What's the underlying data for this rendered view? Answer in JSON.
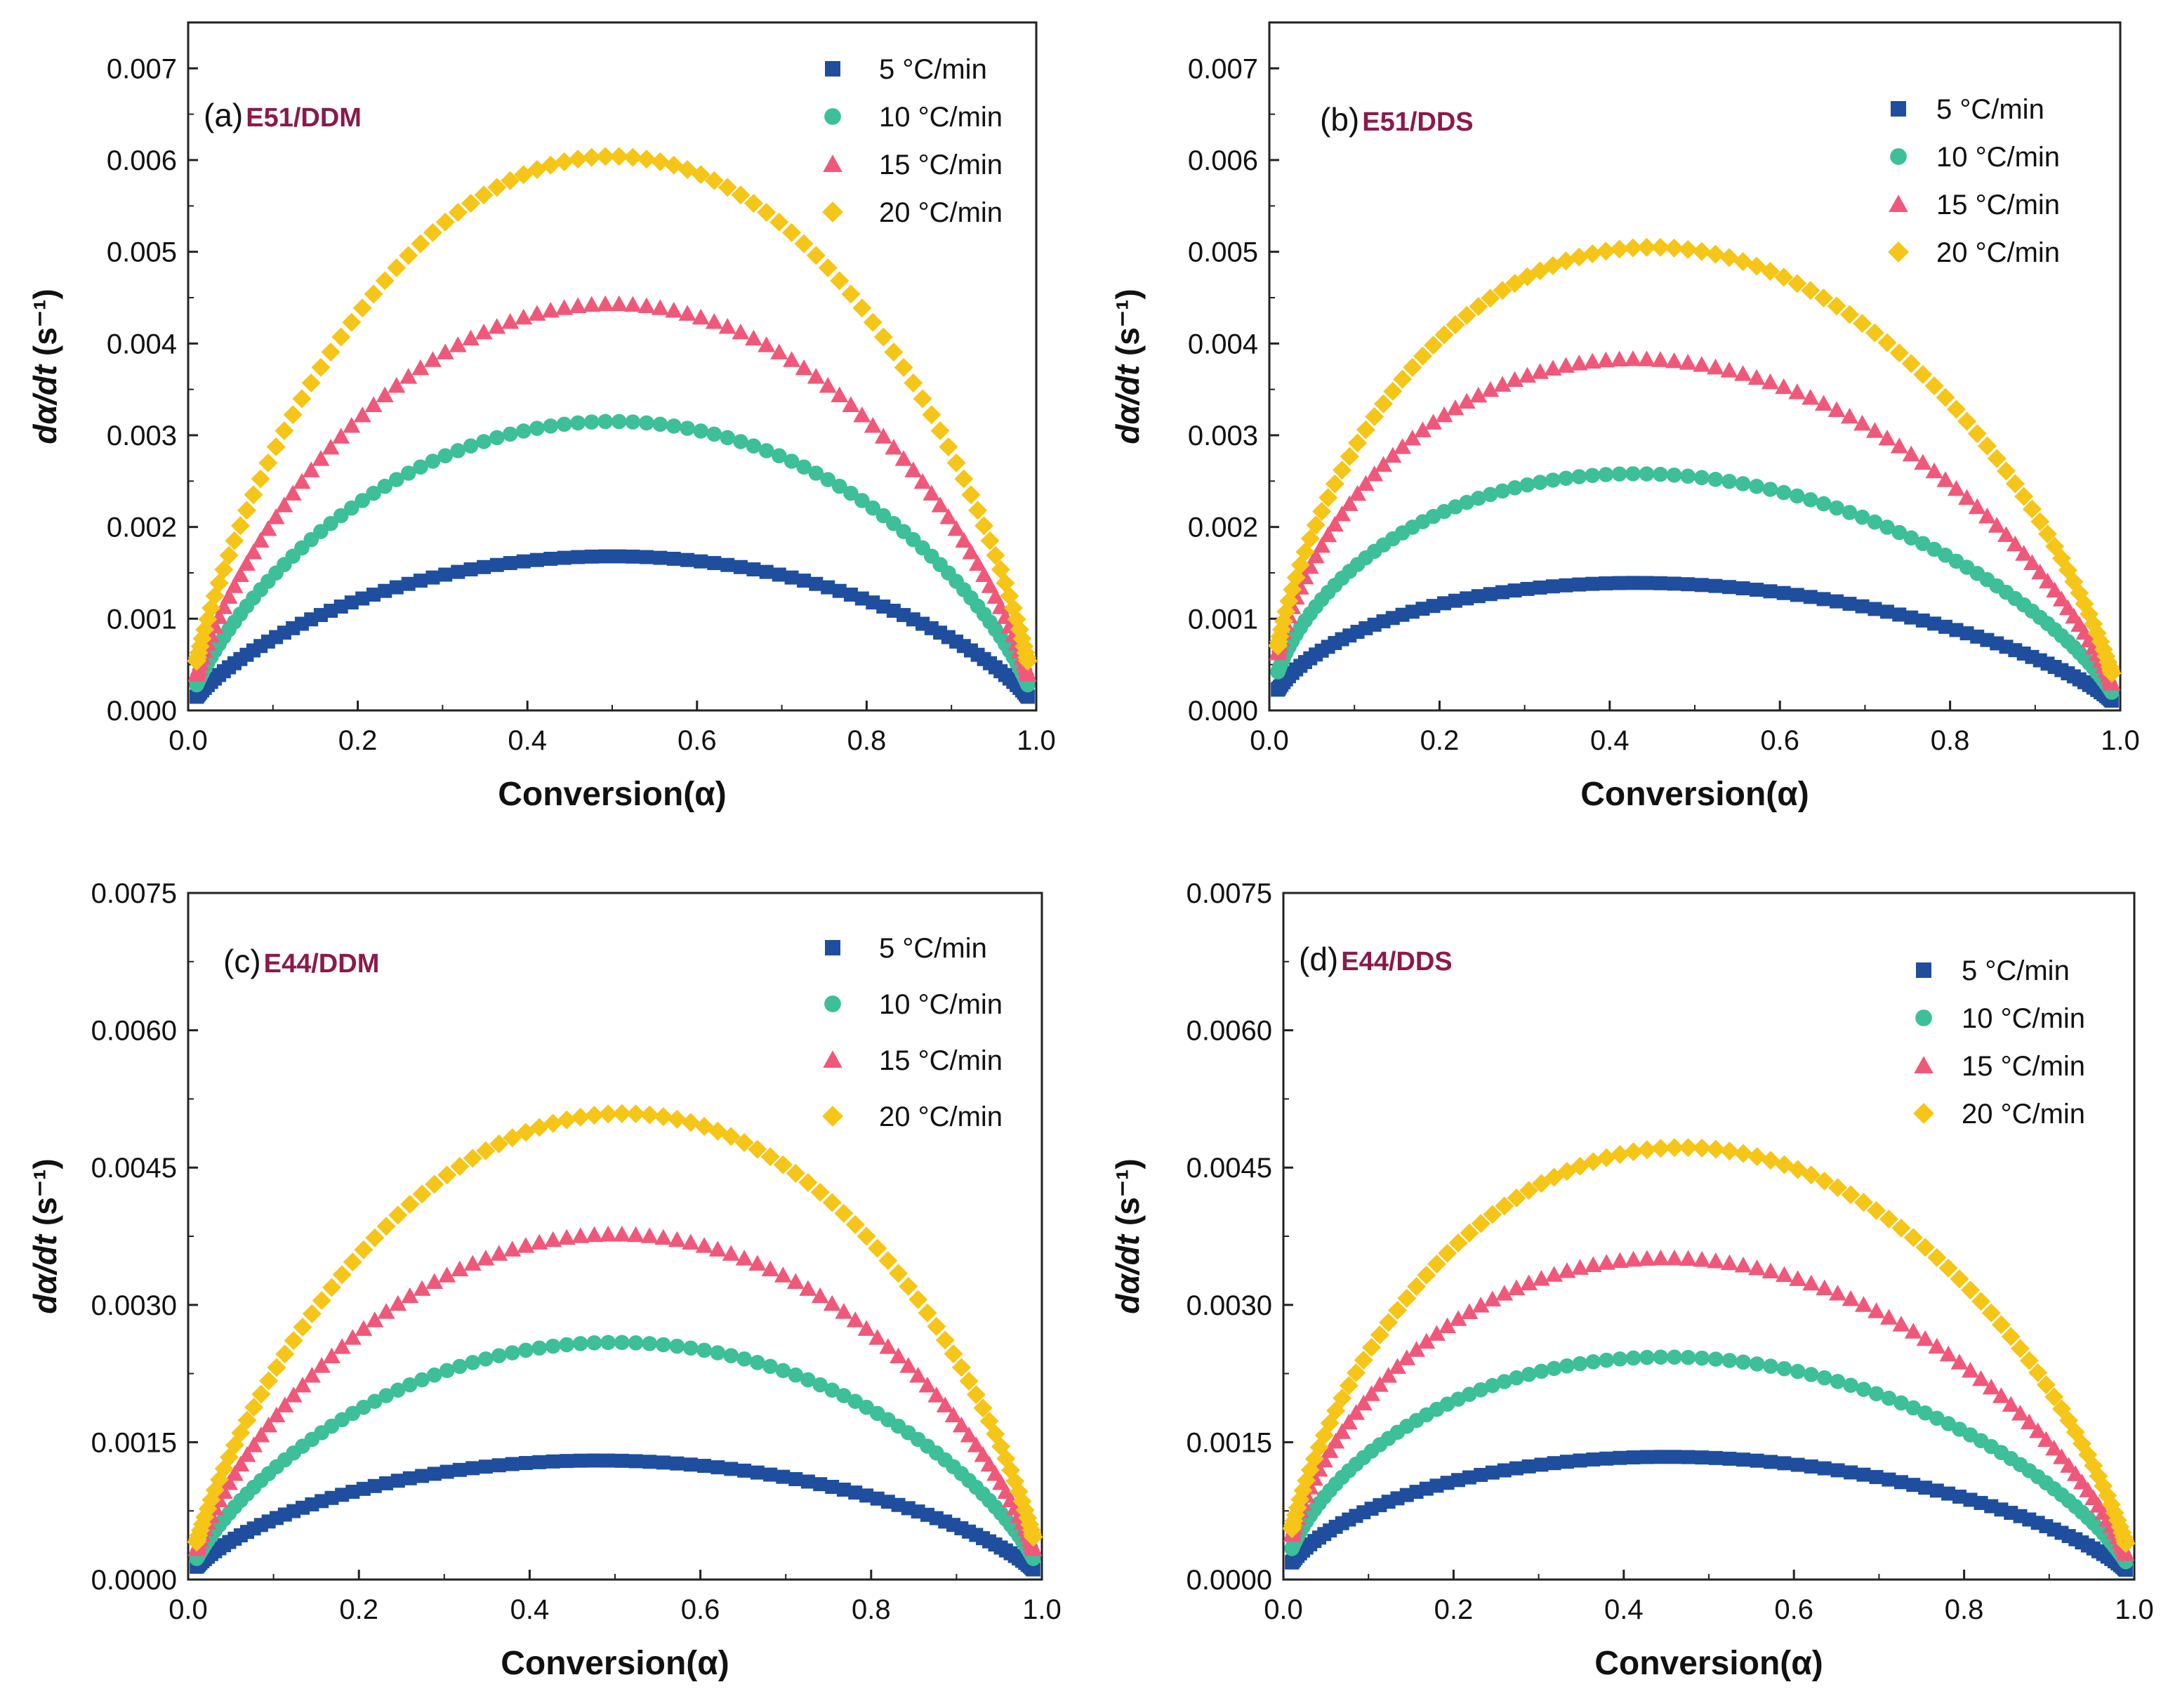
{
  "chart_data": [
    {
      "type": "scatter",
      "panel_letter": "(a)",
      "panel_name": "E51/DDM",
      "xlabel": "Conversion(α)",
      "ylabel": "dα/dt",
      "ylabel_unit": "(s⁻¹)",
      "xlim": [
        0,
        1
      ],
      "ylim": [
        0,
        0.0075
      ],
      "xticks": [
        "0.0",
        "0.2",
        "0.4",
        "0.6",
        "0.8",
        "1.0"
      ],
      "yticks": [
        {
          "value": 0,
          "label": "0.000"
        },
        {
          "value": 0.001,
          "label": "0.001"
        },
        {
          "value": 0.002,
          "label": "0.002"
        },
        {
          "value": 0.003,
          "label": "0.003"
        },
        {
          "value": 0.004,
          "label": "0.004"
        },
        {
          "value": 0.005,
          "label": "0.005"
        },
        {
          "value": 0.006,
          "label": "0.006"
        },
        {
          "value": 0.007,
          "label": "0.007"
        }
      ],
      "legend_position": "top-right",
      "series": [
        {
          "name": "5 °C/min",
          "marker": "square",
          "color": "#1f4e9e",
          "peak_x": 0.5,
          "peak_y": 0.00168,
          "skew": 0.5
        },
        {
          "name": "10 °C/min",
          "marker": "circle",
          "color": "#3dbf99",
          "peak_x": 0.52,
          "peak_y": 0.00315,
          "skew": 0.5
        },
        {
          "name": "15 °C/min",
          "marker": "triangle",
          "color": "#f0587a",
          "peak_x": 0.5,
          "peak_y": 0.00443,
          "skew": 0.5
        },
        {
          "name": "20 °C/min",
          "marker": "diamond",
          "color": "#f5c518",
          "peak_x": 0.51,
          "peak_y": 0.00604,
          "skew": 0.5
        }
      ]
    },
    {
      "type": "scatter",
      "panel_letter": "(b)",
      "panel_name": "E51/DDS",
      "xlabel": "Conversion(α)",
      "ylabel": "dα/dt",
      "ylabel_unit": "(s⁻¹)",
      "xlim": [
        0,
        1
      ],
      "ylim": [
        0,
        0.0075
      ],
      "xticks": [
        "0.0",
        "0.2",
        "0.4",
        "0.6",
        "0.8",
        "1.0"
      ],
      "yticks": [
        {
          "value": 0,
          "label": "0.000"
        },
        {
          "value": 0.001,
          "label": "0.001"
        },
        {
          "value": 0.002,
          "label": "0.002"
        },
        {
          "value": 0.003,
          "label": "0.003"
        },
        {
          "value": 0.004,
          "label": "0.004"
        },
        {
          "value": 0.005,
          "label": "0.005"
        },
        {
          "value": 0.006,
          "label": "0.006"
        },
        {
          "value": 0.007,
          "label": "0.007"
        }
      ],
      "legend_position": "top-right",
      "series": [
        {
          "name": "5 °C/min",
          "marker": "square",
          "color": "#1f4e9e",
          "peak_x": 0.43,
          "peak_y": 0.00139,
          "skew": 0.43
        },
        {
          "name": "10 °C/min",
          "marker": "circle",
          "color": "#3dbf99",
          "peak_x": 0.43,
          "peak_y": 0.00258,
          "skew": 0.43
        },
        {
          "name": "15 °C/min",
          "marker": "triangle",
          "color": "#f0587a",
          "peak_x": 0.43,
          "peak_y": 0.00383,
          "skew": 0.43
        },
        {
          "name": "20 °C/min",
          "marker": "diamond",
          "color": "#f5c518",
          "peak_x": 0.45,
          "peak_y": 0.00505,
          "skew": 0.45
        }
      ]
    },
    {
      "type": "scatter",
      "panel_letter": "(c)",
      "panel_name": "E44/DDM",
      "xlabel": "Conversion(α)",
      "ylabel": "dα/dt",
      "ylabel_unit": "(s⁻¹)",
      "xlim": [
        0,
        1
      ],
      "ylim": [
        0,
        0.0075
      ],
      "xticks": [
        "0.0",
        "0.2",
        "0.4",
        "0.6",
        "0.8",
        "1.0"
      ],
      "yticks": [
        {
          "value": 0,
          "label": "0.0000"
        },
        {
          "value": 0.0015,
          "label": "0.0015"
        },
        {
          "value": 0.003,
          "label": "0.0030"
        },
        {
          "value": 0.0045,
          "label": "0.0045"
        },
        {
          "value": 0.006,
          "label": "0.0060"
        },
        {
          "value": 0.0075,
          "label": "0.0075"
        }
      ],
      "legend_position": "top-right",
      "series": [
        {
          "name": "5 °C/min",
          "marker": "square",
          "color": "#1f4e9e",
          "peak_x": 0.48,
          "peak_y": 0.0013,
          "skew": 0.48
        },
        {
          "name": "10 °C/min",
          "marker": "circle",
          "color": "#3dbf99",
          "peak_x": 0.5,
          "peak_y": 0.00259,
          "skew": 0.5
        },
        {
          "name": "15 °C/min",
          "marker": "triangle",
          "color": "#f0587a",
          "peak_x": 0.5,
          "peak_y": 0.00377,
          "skew": 0.5
        },
        {
          "name": "20 °C/min",
          "marker": "diamond",
          "color": "#f5c518",
          "peak_x": 0.51,
          "peak_y": 0.00509,
          "skew": 0.51
        }
      ]
    },
    {
      "type": "scatter",
      "panel_letter": "(d)",
      "panel_name": "E44/DDS",
      "xlabel": "Conversion(α)",
      "ylabel": "dα/dt",
      "ylabel_unit": "(s⁻¹)",
      "xlim": [
        0,
        1
      ],
      "ylim": [
        0,
        0.0075
      ],
      "xticks": [
        "0.0",
        "0.2",
        "0.4",
        "0.6",
        "0.8",
        "1.0"
      ],
      "yticks": [
        {
          "value": 0,
          "label": "0.0000"
        },
        {
          "value": 0.0015,
          "label": "0.0015"
        },
        {
          "value": 0.003,
          "label": "0.0030"
        },
        {
          "value": 0.0045,
          "label": "0.0045"
        },
        {
          "value": 0.006,
          "label": "0.0060"
        },
        {
          "value": 0.0075,
          "label": "0.0075"
        }
      ],
      "legend_position": "top-right",
      "series": [
        {
          "name": "5 °C/min",
          "marker": "square",
          "color": "#1f4e9e",
          "peak_x": 0.45,
          "peak_y": 0.00134,
          "skew": 0.45
        },
        {
          "name": "10 °C/min",
          "marker": "circle",
          "color": "#3dbf99",
          "peak_x": 0.45,
          "peak_y": 0.00243,
          "skew": 0.45
        },
        {
          "name": "15 °C/min",
          "marker": "triangle",
          "color": "#f0587a",
          "peak_x": 0.45,
          "peak_y": 0.00351,
          "skew": 0.45
        },
        {
          "name": "20 °C/min",
          "marker": "diamond",
          "color": "#f5c518",
          "peak_x": 0.47,
          "peak_y": 0.00472,
          "skew": 0.47
        }
      ]
    }
  ]
}
